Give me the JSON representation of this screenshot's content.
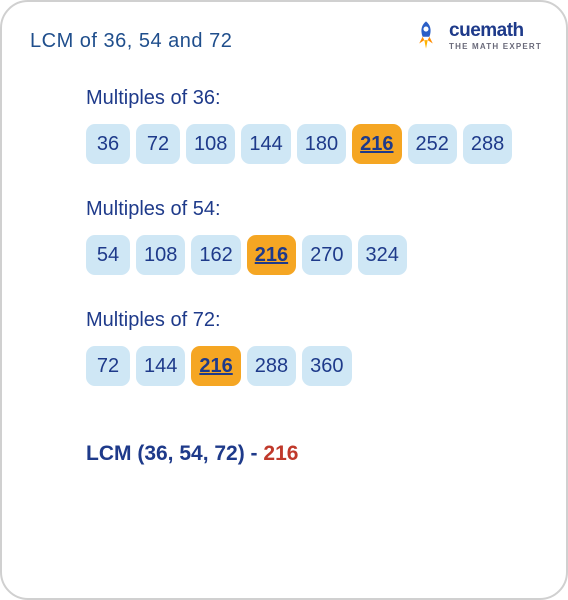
{
  "colors": {
    "title": "#1f4e8c",
    "section_label": "#1e3a8a",
    "chip_bg": "#cfe7f5",
    "chip_text": "#1e3a8a",
    "highlight_bg": "#f5a623",
    "highlight_text": "#1e3a8a",
    "result_label": "#1e3a8a",
    "result_value": "#c0392b",
    "logo_text": "#1e3a8a",
    "logo_tag": "#6a6a7a"
  },
  "title": "LCM of 36, 54 and 72",
  "logo": {
    "text": "cuemath",
    "tagline": "THE MATH EXPERT"
  },
  "sections": [
    {
      "label": "Multiples of 36:",
      "values": [
        36,
        72,
        108,
        144,
        180,
        216,
        252,
        288
      ],
      "highlight": 216
    },
    {
      "label": "Multiples of 54:",
      "values": [
        54,
        108,
        162,
        216,
        270,
        324
      ],
      "highlight": 216
    },
    {
      "label": "Multiples of 72:",
      "values": [
        72,
        144,
        216,
        288,
        360
      ],
      "highlight": 216
    }
  ],
  "result": {
    "label": "LCM (36, 54, 72) - ",
    "value": 216
  },
  "chip_style": {
    "border_radius": 9,
    "height": 40,
    "font_size": 20
  }
}
